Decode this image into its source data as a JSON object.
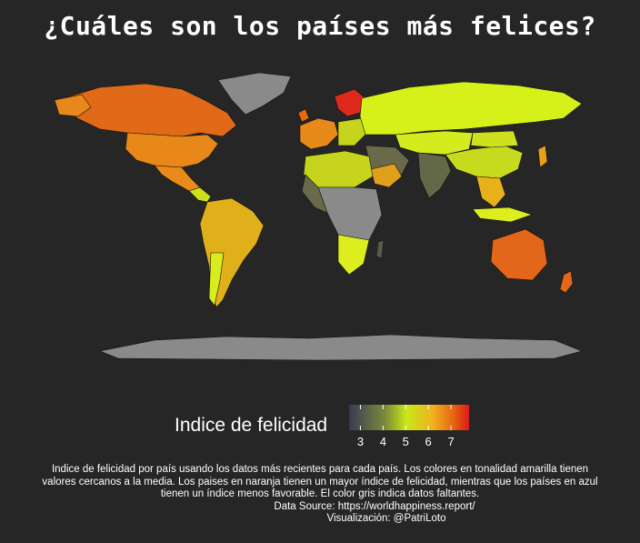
{
  "title": "¿Cuáles son los países más felices?",
  "chart_data": {
    "type": "choropleth",
    "title": "¿Cuáles son los países más felices?",
    "legend": {
      "title": "Indice de felicidad",
      "ticks": [
        3,
        4,
        5,
        6,
        7
      ],
      "range": [
        2.5,
        7.8
      ],
      "colors": [
        "#3a3a55",
        "#7b8a3a",
        "#c9e81a",
        "#f0b020",
        "#e66a10",
        "#dd1a1a"
      ],
      "placement": "bottom-center"
    },
    "missing_color": "#8a8a8a",
    "regions": [
      {
        "name": "Canada",
        "level": "high"
      },
      {
        "name": "Greenland",
        "level": "missing"
      },
      {
        "name": "United States",
        "level": "high"
      },
      {
        "name": "Mexico",
        "level": "high"
      },
      {
        "name": "Central America",
        "level": "mid"
      },
      {
        "name": "South America",
        "level": "mid"
      },
      {
        "name": "Europe (north)",
        "level": "very-high"
      },
      {
        "name": "Europe (west)",
        "level": "high"
      },
      {
        "name": "Russia",
        "level": "mid"
      },
      {
        "name": "Central Asia",
        "level": "mid"
      },
      {
        "name": "Middle East",
        "level": "mid"
      },
      {
        "name": "Africa",
        "level": "mixed"
      },
      {
        "name": "India",
        "level": "low"
      },
      {
        "name": "China",
        "level": "mid"
      },
      {
        "name": "Southeast Asia",
        "level": "mid"
      },
      {
        "name": "Australia",
        "level": "high"
      },
      {
        "name": "New Zealand",
        "level": "high"
      },
      {
        "name": "Antarctica",
        "level": "missing"
      }
    ]
  },
  "caption": {
    "lines": [
      "Indice de felicidad por país usando los datos más recientes para cada país. Los colores en tonalidad amarilla tienen",
      "valores cercanos a la media. Los paises en naranja tienen un mayor índice de felicidad, mientras que los países en azul",
      "tienen un índice menos favorable. El color gris indica datos faltantes.",
      "Data Source: https://worldhappiness.report/",
      "Visualización: @PatriLoto"
    ]
  }
}
